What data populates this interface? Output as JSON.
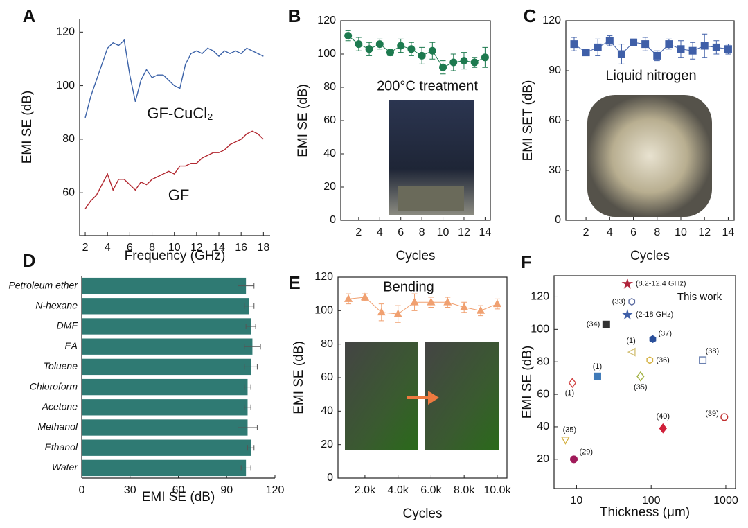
{
  "chart_data": [
    {
      "panel": "A",
      "type": "line",
      "xlabel": "Frequency (GHz)",
      "ylabel": "EMI SE (dB)",
      "x": [
        2,
        2.5,
        3,
        3.5,
        4,
        4.5,
        5,
        5.5,
        6,
        6.5,
        7,
        7.5,
        8,
        8.5,
        9,
        9.5,
        10,
        10.5,
        11,
        11.5,
        12,
        12.5,
        13,
        13.5,
        14,
        14.5,
        15,
        15.5,
        16,
        16.5,
        17,
        17.5,
        18
      ],
      "series": [
        {
          "name": "GF-CuCl₂",
          "color": "#3b62a8",
          "values": [
            88,
            96,
            102,
            108,
            114,
            116,
            115,
            117,
            104,
            94,
            102,
            106,
            103,
            104,
            104,
            102,
            100,
            99,
            108,
            112,
            113,
            112,
            114,
            113,
            111,
            113,
            112,
            113,
            112,
            114,
            113,
            112,
            111
          ]
        },
        {
          "name": "GF",
          "color": "#b22830",
          "values": [
            54,
            57,
            59,
            63,
            67,
            61,
            65,
            65,
            63,
            61,
            64,
            63,
            65,
            66,
            67,
            68,
            67,
            70,
            70,
            71,
            71,
            73,
            74,
            75,
            75,
            76,
            78,
            79,
            80,
            82,
            83,
            82,
            80
          ]
        }
      ],
      "xlim": [
        1.5,
        18.6
      ],
      "ylim": [
        44,
        125
      ],
      "xticks": [
        2,
        4,
        6,
        8,
        10,
        12,
        14,
        16,
        18
      ],
      "yticks": [
        60,
        80,
        100,
        120
      ]
    },
    {
      "panel": "B",
      "type": "line",
      "xlabel": "Cycles",
      "ylabel": "EMI SE (dB)",
      "annotation": "200°C treatment",
      "x": [
        1,
        2,
        3,
        4,
        5,
        6,
        7,
        8,
        9,
        10,
        11,
        12,
        13,
        14
      ],
      "series": [
        {
          "color": "#1d7a4f",
          "marker": "circle",
          "values": [
            111,
            106,
            103,
            106,
            101,
            105,
            103,
            99,
            102,
            92,
            95,
            96,
            95,
            98
          ],
          "errors": [
            3,
            4,
            4,
            3,
            2,
            4,
            4,
            5,
            5,
            4,
            5,
            5,
            3,
            6
          ]
        }
      ],
      "xlim": [
        0.3,
        14.5
      ],
      "ylim": [
        0,
        120
      ],
      "xticks": [
        2,
        4,
        6,
        8,
        10,
        12,
        14
      ],
      "yticks": [
        0,
        20,
        40,
        60,
        80,
        100,
        120
      ]
    },
    {
      "panel": "C",
      "type": "line",
      "xlabel": "Cycles",
      "ylabel": "EMI SET (dB)",
      "annotation": "Liquid nitrogen",
      "x": [
        1,
        2,
        3,
        4,
        5,
        6,
        7,
        8,
        9,
        10,
        11,
        12,
        13,
        14
      ],
      "series": [
        {
          "color": "#3f5fa8",
          "marker": "square",
          "values": [
            106,
            101,
            104,
            108,
            100,
            107,
            106,
            99,
            106,
            103,
            102,
            105,
            104,
            103
          ],
          "errors": [
            4,
            2,
            5,
            3,
            6,
            2,
            4,
            3,
            3,
            5,
            5,
            7,
            4,
            3
          ]
        }
      ],
      "xlim": [
        0.3,
        14.5
      ],
      "ylim": [
        0,
        120
      ],
      "xticks": [
        2,
        4,
        6,
        8,
        10,
        12,
        14
      ],
      "yticks": [
        0,
        30,
        60,
        90,
        120
      ]
    },
    {
      "panel": "D",
      "type": "bar",
      "orientation": "horizontal",
      "xlabel": "EMI SE (dB)",
      "color": "#2f7a73",
      "categories": [
        "Petroleum ether",
        "N-hexane",
        "DMF",
        "EA",
        "Toluene",
        "Chloroform",
        "Acetone",
        "Methanol",
        "Ethanol",
        "Water"
      ],
      "values": [
        102,
        104,
        105,
        106,
        105,
        103,
        103,
        103,
        105,
        102
      ],
      "errors": [
        5,
        3,
        3,
        5,
        4,
        2,
        2,
        6,
        2,
        3
      ],
      "xlim": [
        0,
        120
      ],
      "xticks": [
        0,
        30,
        60,
        90,
        120
      ]
    },
    {
      "panel": "E",
      "type": "line",
      "xlabel": "Cycles",
      "ylabel": "EMI SE (dB)",
      "annotation": "Bending",
      "x": [
        1000,
        2000,
        3000,
        4000,
        5000,
        6000,
        7000,
        8000,
        9000,
        10000
      ],
      "series": [
        {
          "color": "#f0a070",
          "marker": "triangle",
          "values": [
            107,
            108,
            99,
            98,
            105,
            105,
            105,
            102,
            100,
            104
          ],
          "errors": [
            3,
            2,
            5,
            5,
            5,
            3,
            3,
            3,
            3,
            3
          ]
        }
      ],
      "xlim": [
        370,
        10590
      ],
      "ylim": [
        0,
        120
      ],
      "xticks": [
        {
          "value": 2000,
          "label": "2.0k"
        },
        {
          "value": 4000,
          "label": "4.0k"
        },
        {
          "value": 6000,
          "label": "6.0k"
        },
        {
          "value": 8000,
          "label": "8.0k"
        },
        {
          "value": 10000,
          "label": "10.0k"
        }
      ],
      "yticks": [
        0,
        20,
        40,
        60,
        80,
        100,
        120
      ]
    },
    {
      "panel": "F",
      "type": "scatter",
      "xscale": "log",
      "xlabel": "Thickness (μm)",
      "ylabel": "EMI SE (dB)",
      "annotation": "This work",
      "points": [
        {
          "label": "(8.2-12.4 GHz)",
          "x": 48,
          "y": 128,
          "marker": "star",
          "color": "#b0243a",
          "filled": true,
          "label_color": "#b0243a"
        },
        {
          "label": "(33)",
          "x": 55,
          "y": 117,
          "marker": "hexagon",
          "color": "#5a6aa0",
          "filled": false
        },
        {
          "label": "(2-18 GHz)",
          "x": 48,
          "y": 109,
          "marker": "star",
          "color": "#3f5fa8",
          "filled": true,
          "label_color": "#3f5fa8"
        },
        {
          "label": "(34)",
          "x": 25,
          "y": 103,
          "marker": "square",
          "color": "#333333",
          "filled": true
        },
        {
          "label": "(37)",
          "x": 105,
          "y": 94,
          "marker": "hexagon",
          "color": "#2a4f9a",
          "filled": true
        },
        {
          "label": "(1)",
          "x": 56,
          "y": 86,
          "marker": "triangle-left",
          "color": "#d4c27a",
          "filled": false
        },
        {
          "label": "(36)",
          "x": 96,
          "y": 81,
          "marker": "hexagon",
          "color": "#d4b040",
          "filled": false
        },
        {
          "label": "(38)",
          "x": 490,
          "y": 81,
          "marker": "square",
          "color": "#6a80b0",
          "filled": false
        },
        {
          "label": "(1)",
          "x": 19,
          "y": 71,
          "marker": "square",
          "color": "#3f7ab8",
          "filled": true
        },
        {
          "label": "(1)",
          "x": 8.8,
          "y": 67,
          "marker": "diamond",
          "color": "#d04040",
          "filled": false
        },
        {
          "label": "(35)",
          "x": 72,
          "y": 71,
          "marker": "diamond",
          "color": "#a0b040",
          "filled": false
        },
        {
          "label": "(40)",
          "x": 144,
          "y": 39,
          "marker": "diamond",
          "color": "#d0203a",
          "filled": true
        },
        {
          "label": "(39)",
          "x": 955,
          "y": 46,
          "marker": "circle",
          "color": "#c03030",
          "filled": false
        },
        {
          "label": "(35)",
          "x": 7.1,
          "y": 32,
          "marker": "triangle-down",
          "color": "#d4b040",
          "filled": false
        },
        {
          "label": "(29)",
          "x": 9.2,
          "y": 20,
          "marker": "circle",
          "color": "#a01a5a",
          "filled": true
        }
      ],
      "xlim": [
        5,
        1350
      ],
      "ylim": [
        2,
        133
      ],
      "xticks": [
        10,
        100,
        1000
      ],
      "yticks": [
        20,
        40,
        60,
        80,
        100,
        120
      ]
    }
  ]
}
